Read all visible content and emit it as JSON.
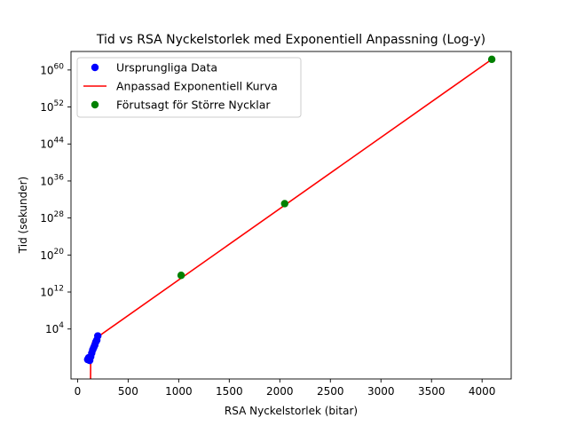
{
  "chart_data": {
    "type": "scatter",
    "title": "Tid vs RSA Nyckelstorlek med Exponentiell Anpassning (Log-y)",
    "xlabel": "RSA Nyckelstorlek (bitar)",
    "ylabel": "Tid (sekunder)",
    "xlim": [
      -65,
      4288
    ],
    "ylim_log10": [
      -6.8,
      64
    ],
    "y_scale": "log",
    "x_ticks": [
      0,
      500,
      1000,
      1500,
      2000,
      2500,
      3000,
      3500,
      4000
    ],
    "x_tick_labels": [
      "0",
      "500",
      "1000",
      "1500",
      "2000",
      "2500",
      "3000",
      "3500",
      "4000"
    ],
    "y_ticks_exp": [
      4,
      12,
      20,
      28,
      36,
      44,
      52,
      60
    ],
    "y_tick_labels": [
      {
        "base": "10",
        "exp": "4"
      },
      {
        "base": "10",
        "exp": "12"
      },
      {
        "base": "10",
        "exp": "20"
      },
      {
        "base": "10",
        "exp": "28"
      },
      {
        "base": "10",
        "exp": "36"
      },
      {
        "base": "10",
        "exp": "44"
      },
      {
        "base": "10",
        "exp": "52"
      },
      {
        "base": "10",
        "exp": "60"
      }
    ],
    "legend_position": "upper-left",
    "grid": false,
    "series": [
      {
        "name": "Ursprungliga Data",
        "kind": "scatter",
        "color": "#0000ff",
        "points": [
          {
            "x": 100,
            "y_log10": -2.6
          },
          {
            "x": 110,
            "y_log10": -2.2
          },
          {
            "x": 120,
            "y_log10": -2.8
          },
          {
            "x": 130,
            "y_log10": -2.0
          },
          {
            "x": 140,
            "y_log10": -1.2
          },
          {
            "x": 150,
            "y_log10": -0.5
          },
          {
            "x": 160,
            "y_log10": 0.0
          },
          {
            "x": 170,
            "y_log10": 0.5
          },
          {
            "x": 180,
            "y_log10": 1.2
          },
          {
            "x": 190,
            "y_log10": 1.6
          },
          {
            "x": 200,
            "y_log10": 2.5
          }
        ]
      },
      {
        "name": "Anpassad Exponentiell Kurva",
        "kind": "line",
        "color": "#ff0000",
        "points": [
          {
            "x": 128,
            "y_log10": -8
          },
          {
            "x": 130,
            "y_log10": -1.5
          },
          {
            "x": 135,
            "y_log10": 0.0
          },
          {
            "x": 150,
            "y_log10": 1.2
          },
          {
            "x": 200,
            "y_log10": 2.3
          },
          {
            "x": 4096,
            "y_log10": 62.3
          }
        ]
      },
      {
        "name": "Förutsagt för Större Nycklar",
        "kind": "scatter",
        "color": "#008000",
        "points": [
          {
            "x": 1024,
            "y_log10": 15.6
          },
          {
            "x": 2048,
            "y_log10": 31.1
          },
          {
            "x": 4096,
            "y_log10": 62.3
          }
        ]
      }
    ]
  }
}
